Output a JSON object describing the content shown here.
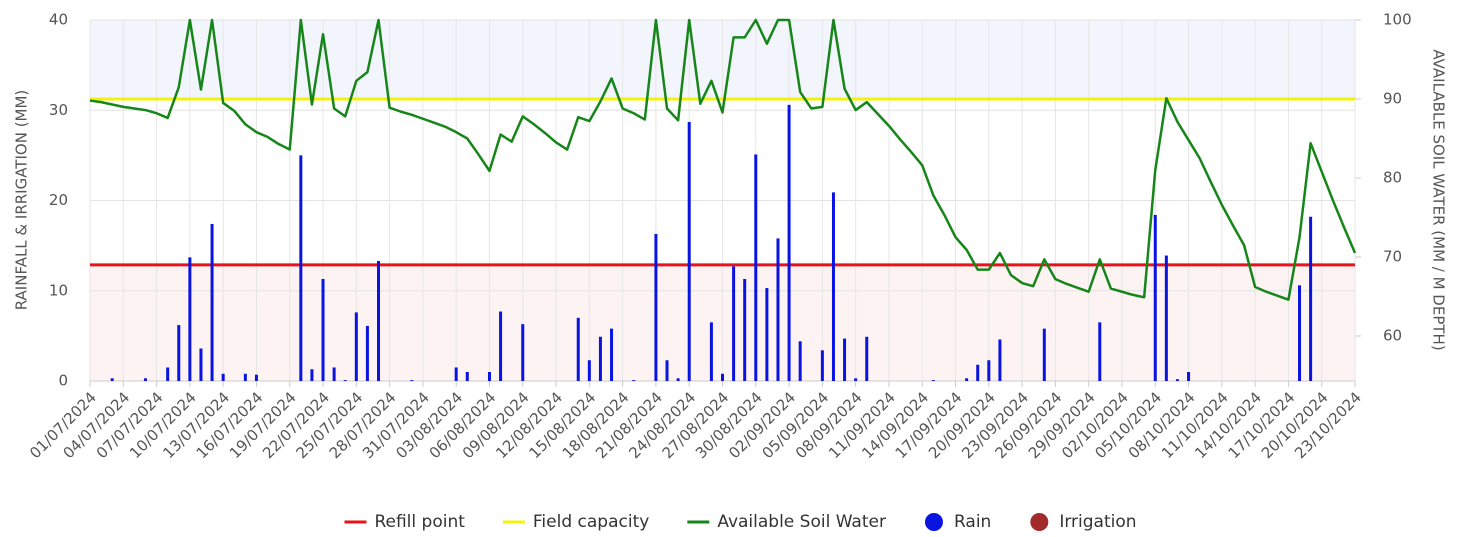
{
  "chart_data": {
    "type": "combo",
    "y_label": "RAINFALL & IRRIGATION (MM)",
    "y2_label": "AVAILABLE SOIL WATER (MM / M DEPTH)",
    "categories": [
      "01/07/2024",
      null,
      null,
      "04/07/2024",
      null,
      null,
      "07/07/2024",
      null,
      null,
      "10/07/2024",
      null,
      null,
      "13/07/2024",
      null,
      null,
      "16/07/2024",
      null,
      null,
      "19/07/2024",
      null,
      null,
      "22/07/2024",
      null,
      null,
      "25/07/2024",
      null,
      null,
      "28/07/2024",
      null,
      null,
      "31/07/2024",
      null,
      null,
      "03/08/2024",
      null,
      null,
      "06/08/2024",
      null,
      null,
      "09/08/2024",
      null,
      null,
      "12/08/2024",
      null,
      null,
      "15/08/2024",
      null,
      null,
      "18/08/2024",
      null,
      null,
      "21/08/2024",
      null,
      null,
      "24/08/2024",
      null,
      null,
      "27/08/2024",
      null,
      null,
      "30/08/2024",
      null,
      null,
      "02/09/2024",
      null,
      null,
      "05/09/2024",
      null,
      null,
      "08/09/2024",
      null,
      null,
      "11/09/2024",
      null,
      null,
      "14/09/2024",
      null,
      null,
      "17/09/2024",
      null,
      null,
      "20/09/2024",
      null,
      null,
      "23/09/2024",
      null,
      null,
      "26/09/2024",
      null,
      null,
      "29/09/2024",
      null,
      null,
      "02/10/2024",
      null,
      null,
      "05/10/2024",
      null,
      null,
      "08/10/2024",
      null,
      null,
      "11/10/2024",
      null,
      null,
      "14/10/2024",
      null,
      null,
      "17/10/2024",
      null,
      null,
      "20/10/2024",
      null,
      null,
      "23/10/2024"
    ],
    "ylim": [
      0,
      40
    ],
    "yticks": [
      0,
      10,
      20,
      30,
      40
    ],
    "y2lim": [
      54.3,
      100
    ],
    "y2ticks": [
      60,
      70,
      80,
      90,
      100
    ],
    "grid": true,
    "series": [
      {
        "name": "Refill point",
        "type": "hline",
        "color": "#e8131a",
        "axis": "y2",
        "value": 69
      },
      {
        "name": "Field capacity",
        "type": "hline",
        "color": "#f2f20a",
        "axis": "y2",
        "value": 90
      },
      {
        "name": "Available Soil Water",
        "type": "line",
        "color": "#17861a",
        "axis": "y2",
        "values": [
          89.8,
          89.6,
          89.3,
          89.0,
          88.8,
          88.6,
          88.2,
          87.6,
          91.5,
          100,
          91.2,
          100,
          89.5,
          88.5,
          86.8,
          85.8,
          85.2,
          84.3,
          83.6,
          100,
          89.3,
          98.2,
          88.8,
          87.8,
          92.3,
          93.4,
          100,
          88.9,
          88.4,
          88.0,
          87.5,
          87.0,
          86.5,
          85.8,
          85.0,
          83.0,
          80.9,
          85.5,
          84.6,
          87.8,
          86.8,
          85.7,
          84.5,
          83.6,
          87.7,
          87.2,
          89.7,
          92.6,
          88.8,
          88.2,
          87.4,
          100,
          88.8,
          87.3,
          100,
          89.4,
          92.3,
          88.3,
          97.8,
          97.8,
          100,
          97.0,
          100,
          100,
          90.9,
          88.8,
          89.0,
          100,
          91.3,
          88.6,
          89.6,
          88.1,
          86.6,
          84.9,
          83.3,
          81.6,
          77.8,
          75.3,
          72.5,
          70.9,
          68.4,
          68.4,
          70.5,
          67.7,
          66.7,
          66.3,
          69.7,
          67.2,
          66.6,
          66.1,
          65.6,
          69.7,
          66.0,
          65.6,
          65.2,
          64.9,
          81.0,
          90.1,
          87.1,
          84.8,
          82.5,
          79.5,
          76.6,
          74.0,
          71.5,
          66.2,
          65.6,
          65.1,
          64.6,
          72.5,
          84.4,
          80.8,
          77.2,
          73.8,
          70.5
        ]
      },
      {
        "name": "Rain",
        "type": "bar",
        "color": "#0a14e0",
        "values": [
          0,
          0,
          0.3,
          0,
          0,
          0.3,
          0,
          1.5,
          6.2,
          13.7,
          3.6,
          17.4,
          0.8,
          0,
          0.8,
          0.7,
          0,
          0,
          0,
          25,
          1.3,
          11.3,
          1.5,
          0.1,
          7.6,
          6.1,
          13.3,
          0,
          0,
          0.1,
          0,
          0,
          0,
          1.5,
          1.0,
          0,
          1.0,
          7.7,
          0,
          6.3,
          0,
          0,
          0,
          0,
          7.0,
          2.3,
          4.9,
          5.8,
          0,
          0.1,
          0,
          16.3,
          2.3,
          0.3,
          28.7,
          0,
          6.5,
          0.8,
          12.7,
          11.3,
          25.1,
          10.3,
          15.8,
          30.6,
          4.4,
          0,
          3.4,
          20.9,
          4.7,
          0.3,
          4.9,
          0,
          0,
          0,
          0,
          0,
          0.1,
          0,
          0,
          0.3,
          1.8,
          2.3,
          4.6,
          0,
          0,
          0,
          5.8,
          0,
          0,
          0,
          0,
          6.5,
          0,
          0,
          0,
          0,
          18.4,
          13.9,
          0.2,
          1.0,
          0,
          0,
          0,
          0,
          0,
          0,
          0,
          0,
          0,
          10.6,
          18.2,
          0,
          0,
          0,
          0
        ]
      },
      {
        "name": "Irrigation",
        "type": "bar",
        "color": "#a32a2a",
        "values": [
          0,
          0,
          0,
          0,
          0,
          0,
          0,
          0,
          0,
          0,
          0,
          0,
          0,
          0,
          0,
          0,
          0,
          0,
          0,
          0,
          0,
          0,
          0,
          0,
          0,
          0,
          0,
          0,
          0,
          0,
          0,
          0,
          0,
          0,
          0,
          0,
          0,
          0,
          0,
          0,
          0,
          0,
          0,
          0,
          0,
          0,
          0,
          0,
          0,
          0,
          0,
          0,
          0,
          0,
          0,
          0,
          0,
          0,
          0,
          0,
          0,
          0,
          0,
          0,
          0,
          0,
          0,
          0,
          0,
          0,
          0,
          0,
          0,
          0,
          0,
          0,
          0,
          0,
          0,
          0,
          0,
          0,
          0,
          0,
          0,
          0,
          0,
          0,
          0,
          0,
          0,
          0,
          0,
          0,
          0,
          0,
          0,
          0,
          0,
          0,
          0,
          0,
          0,
          0,
          0,
          0,
          0,
          0,
          0,
          0,
          0,
          0,
          0,
          0,
          0
        ]
      }
    ]
  }
}
